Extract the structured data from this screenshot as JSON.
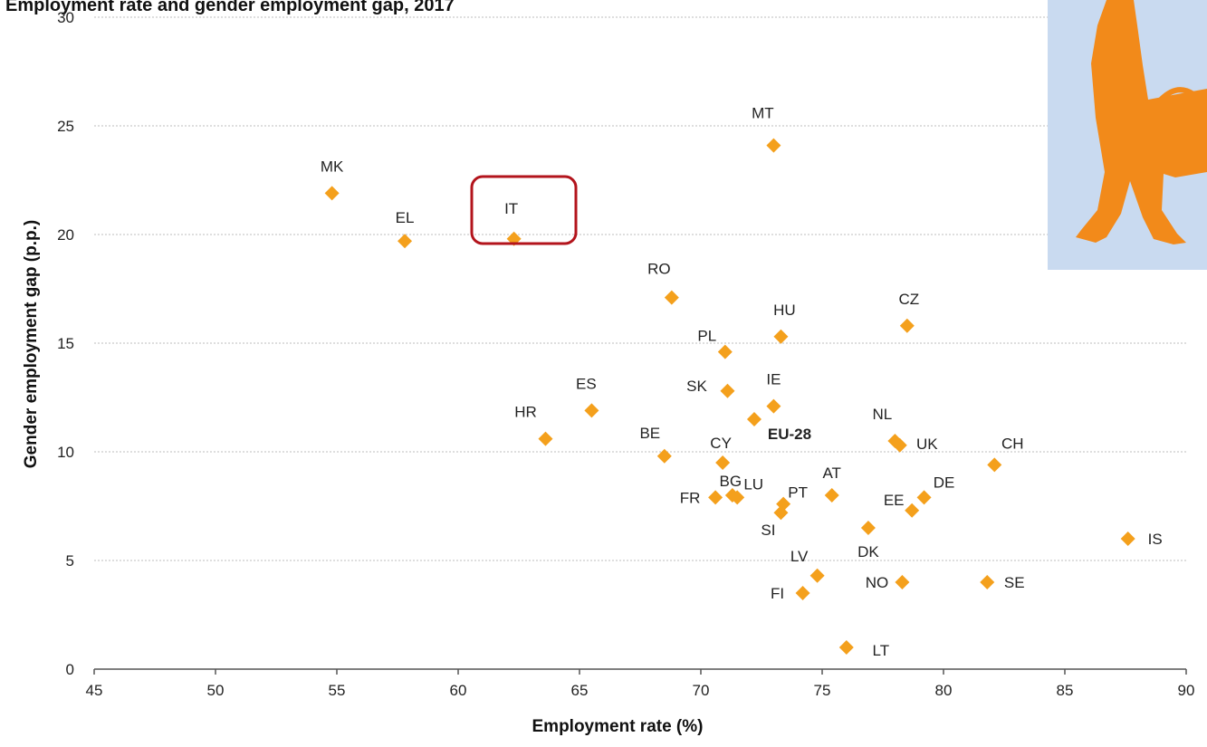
{
  "chart_data": {
    "type": "scatter",
    "title": "Employment rate and gender employment gap, 2017",
    "xlabel": "Employment rate (%)",
    "ylabel": "Gender employment gap (p.p.)",
    "xlim": [
      45,
      90
    ],
    "ylim": [
      0,
      30
    ],
    "xticks": [
      45,
      50,
      55,
      60,
      65,
      70,
      75,
      80,
      85,
      90
    ],
    "yticks": [
      0,
      5,
      10,
      15,
      20,
      25,
      30
    ],
    "grid": "horizontal dotted",
    "marker_color": "#f4a01c",
    "points": [
      {
        "label": "MK",
        "x": 54.8,
        "y": 21.9
      },
      {
        "label": "EL",
        "x": 57.8,
        "y": 19.7
      },
      {
        "label": "IT",
        "x": 62.3,
        "y": 19.8,
        "highlight": true
      },
      {
        "label": "MT",
        "x": 73.0,
        "y": 24.1
      },
      {
        "label": "RO",
        "x": 68.8,
        "y": 17.1
      },
      {
        "label": "HU",
        "x": 73.3,
        "y": 15.3
      },
      {
        "label": "CZ",
        "x": 78.5,
        "y": 15.8
      },
      {
        "label": "PL",
        "x": 71.0,
        "y": 14.6
      },
      {
        "label": "ES",
        "x": 65.5,
        "y": 11.9
      },
      {
        "label": "SK",
        "x": 71.1,
        "y": 12.8
      },
      {
        "label": "IE",
        "x": 73.0,
        "y": 12.1
      },
      {
        "label": "HR",
        "x": 63.6,
        "y": 10.6
      },
      {
        "label": "EU-28",
        "x": 72.2,
        "y": 11.5,
        "bold": true
      },
      {
        "label": "BE",
        "x": 68.5,
        "y": 9.8
      },
      {
        "label": "CY",
        "x": 70.9,
        "y": 9.5
      },
      {
        "label": "NL",
        "x": 78.0,
        "y": 10.5
      },
      {
        "label": "UK",
        "x": 78.2,
        "y": 10.3
      },
      {
        "label": "CH",
        "x": 82.1,
        "y": 9.4
      },
      {
        "label": "FR",
        "x": 70.6,
        "y": 7.9
      },
      {
        "label": "BG",
        "x": 71.3,
        "y": 8.0
      },
      {
        "label": "LU",
        "x": 71.5,
        "y": 7.9
      },
      {
        "label": "PT",
        "x": 73.4,
        "y": 7.6
      },
      {
        "label": "SI",
        "x": 73.3,
        "y": 7.2
      },
      {
        "label": "AT",
        "x": 75.4,
        "y": 8.0
      },
      {
        "label": "EE",
        "x": 78.7,
        "y": 7.3
      },
      {
        "label": "DE",
        "x": 79.2,
        "y": 7.9
      },
      {
        "label": "DK",
        "x": 76.9,
        "y": 6.5
      },
      {
        "label": "IS",
        "x": 87.6,
        "y": 6.0
      },
      {
        "label": "LV",
        "x": 74.8,
        "y": 4.3
      },
      {
        "label": "FI",
        "x": 74.2,
        "y": 3.5
      },
      {
        "label": "NO",
        "x": 78.3,
        "y": 4.0
      },
      {
        "label": "SE",
        "x": 81.8,
        "y": 4.0
      },
      {
        "label": "LT",
        "x": 76.0,
        "y": 1.0
      }
    ]
  }
}
